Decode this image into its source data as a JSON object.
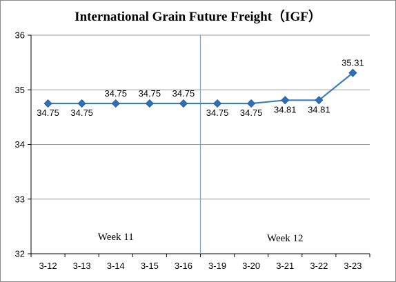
{
  "chart_data": {
    "type": "line",
    "title": "International Grain Future Freight（IGF）",
    "categories": [
      "3-12",
      "3-13",
      "3-14",
      "3-15",
      "3-16",
      "3-19",
      "3-20",
      "3-21",
      "3-22",
      "3-23"
    ],
    "values": [
      34.75,
      34.75,
      34.75,
      34.75,
      34.75,
      34.75,
      34.75,
      34.81,
      34.81,
      35.31
    ],
    "data_labels": [
      "34.75",
      "34.75",
      "34.75",
      "34.75",
      "34.75",
      "34.75",
      "34.75",
      "34.81",
      "34.81",
      "35.31"
    ],
    "ylim": [
      32,
      36
    ],
    "yticks": [
      "32",
      "33",
      "34",
      "35",
      "36"
    ],
    "grid": true,
    "week_labels": [
      "Week 11",
      "Week 12"
    ],
    "colors": {
      "line": "#3a7dc2",
      "marker": "#2e6fb8",
      "grid": "#9a9a9a",
      "divider": "#7f9fc4"
    }
  }
}
